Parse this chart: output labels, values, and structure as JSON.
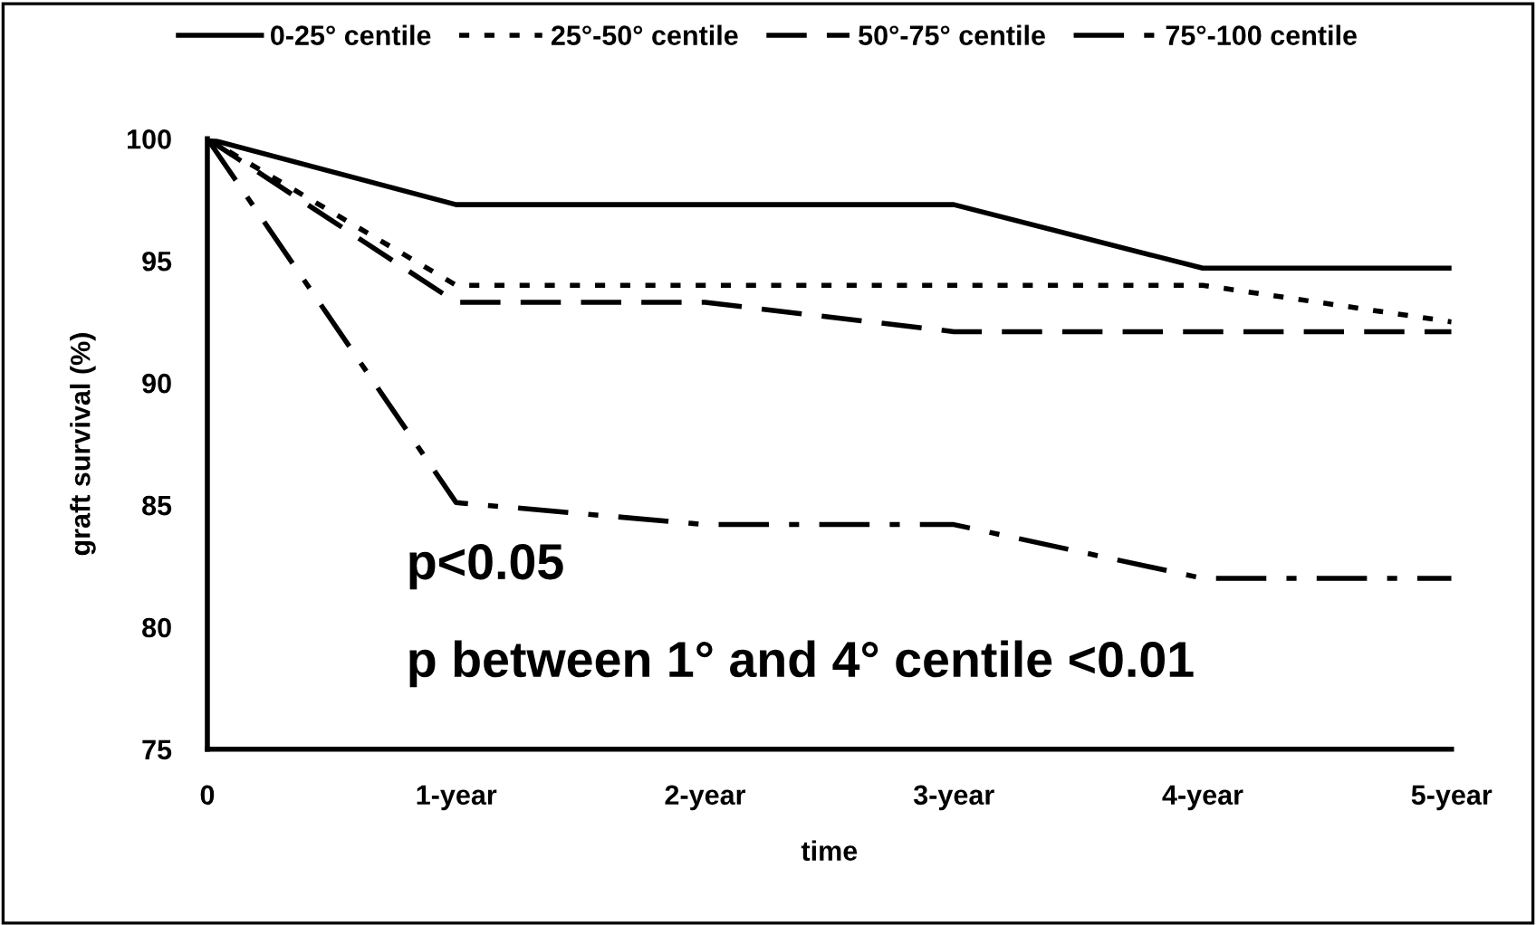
{
  "chart_data": {
    "type": "line",
    "xlabel": "time",
    "ylabel": "graft survival (%)",
    "categories": [
      "0",
      "1-year",
      "2-year",
      "3-year",
      "4-year",
      "5-year"
    ],
    "series": [
      {
        "name": "0-25° centile",
        "color": "#000000",
        "line_style": "solid",
        "values": [
          100,
          97.3,
          97.3,
          97.3,
          94.7,
          94.7
        ]
      },
      {
        "name": "25°-50° centile",
        "color": "#000000",
        "line_style": "dotted",
        "values": [
          100,
          94.0,
          94.0,
          94.0,
          94.0,
          92.5
        ]
      },
      {
        "name": "50°-75° centile",
        "color": "#000000",
        "line_style": "dashed",
        "values": [
          100,
          93.3,
          93.3,
          92.1,
          92.1,
          92.1
        ]
      },
      {
        "name": "75°-100 centile",
        "color": "#000000",
        "line_style": "dashdot",
        "values": [
          100,
          85.1,
          84.2,
          84.2,
          82.0,
          82.0
        ]
      }
    ],
    "ylim": [
      75,
      100
    ],
    "yticks": [
      75,
      80,
      85,
      90,
      95,
      100
    ],
    "grid": false,
    "legend": "top",
    "marker": "none",
    "annotations": [
      "p<0.05",
      "p between 1° and 4° centile <0.01"
    ]
  }
}
